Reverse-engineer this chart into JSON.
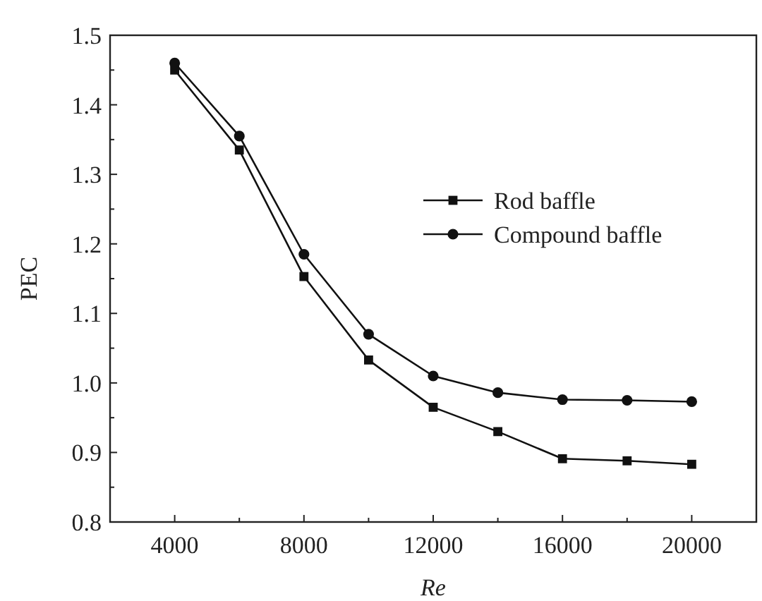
{
  "chart_data": {
    "type": "line",
    "xlabel": "Re",
    "ylabel": "PEC",
    "x": [
      4000,
      6000,
      8000,
      10000,
      12000,
      14000,
      16000,
      18000,
      20000
    ],
    "series": [
      {
        "name": "Rod baffle",
        "color": "#111111",
        "marker": "square",
        "values": [
          1.45,
          1.335,
          1.153,
          1.033,
          0.965,
          0.93,
          0.891,
          0.888,
          0.883
        ]
      },
      {
        "name": "Compound baffle",
        "color": "#111111",
        "marker": "circle",
        "values": [
          1.46,
          1.355,
          1.185,
          1.07,
          1.01,
          0.986,
          0.976,
          0.975,
          0.973
        ]
      }
    ],
    "xlim": [
      2000,
      22000
    ],
    "ylim": [
      0.8,
      1.5
    ],
    "xticks": [
      4000,
      {
        "value": 6000,
        "label": null
      },
      8000,
      {
        "value": 10000,
        "label": null
      },
      12000,
      {
        "value": 14000,
        "label": null
      },
      16000,
      {
        "value": 18000,
        "label": null
      },
      20000
    ],
    "yticks": [
      0.8,
      {
        "value": 0.85,
        "label": null
      },
      0.9,
      {
        "value": 0.95,
        "label": null
      },
      {
        "value": 1.0,
        "label": "1.0"
      },
      {
        "value": 1.05,
        "label": null
      },
      1.1,
      {
        "value": 1.15,
        "label": null
      },
      1.2,
      {
        "value": 1.25,
        "label": null
      },
      1.3,
      {
        "value": 1.35,
        "label": null
      },
      1.4,
      {
        "value": 1.45,
        "label": null
      },
      1.5
    ],
    "legend": "top right",
    "grid": false,
    "line_style": "solid"
  }
}
